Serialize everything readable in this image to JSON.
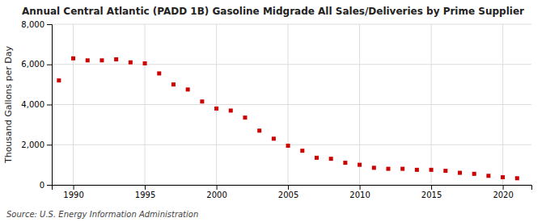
{
  "chart_data": {
    "type": "scatter",
    "title": "Annual Central Atlantic (PADD 1B) Gasoline Midgrade All Sales/Deliveries by Prime Supplier",
    "ylabel": "Thousand Gallons per Day",
    "annotations": [
      "Source: U.S. Energy Information Administration"
    ],
    "x": [
      1989,
      1990,
      1991,
      1992,
      1993,
      1994,
      1995,
      1996,
      1997,
      1998,
      1999,
      2000,
      2001,
      2002,
      2003,
      2004,
      2005,
      2006,
      2007,
      2008,
      2009,
      2010,
      2011,
      2012,
      2013,
      2014,
      2015,
      2016,
      2017,
      2018,
      2019,
      2020,
      2021
    ],
    "values": [
      5200,
      6300,
      6200,
      6200,
      6250,
      6100,
      6050,
      5550,
      5000,
      4750,
      4150,
      3800,
      3700,
      3350,
      2700,
      2300,
      1950,
      1700,
      1350,
      1300,
      1100,
      1000,
      850,
      800,
      800,
      750,
      750,
      700,
      600,
      550,
      450,
      380,
      330
    ],
    "color": "#cc0000",
    "marker": "square",
    "xlim": [
      1988.5,
      2022
    ],
    "xticks": [
      1990,
      1995,
      2000,
      2005,
      2010,
      2015,
      2020
    ],
    "ylim": [
      0,
      8000
    ],
    "yticks": [
      0,
      {
        "value": 2000,
        "label": "2,000"
      },
      {
        "value": 4000,
        "label": "4,000"
      },
      {
        "value": 6000,
        "label": "6,000"
      },
      {
        "value": 8000,
        "label": "8,000"
      }
    ],
    "grid": true
  }
}
